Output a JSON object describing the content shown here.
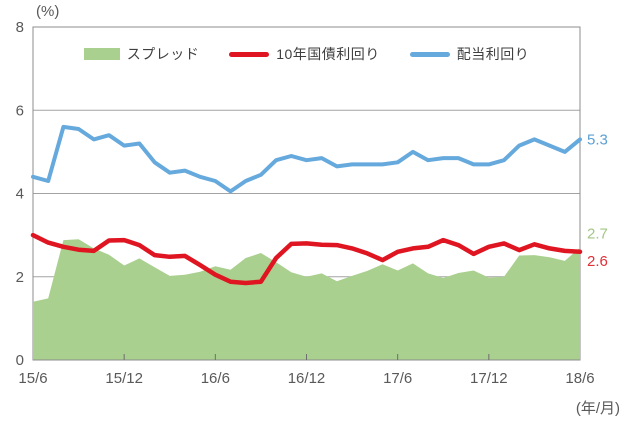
{
  "chart": {
    "unit_label": "(%)",
    "x_unit_label": "(年/月)",
    "legend": [
      {
        "label": "スプレッド",
        "type": "area",
        "color": "#a9d08e"
      },
      {
        "label": "10年国債利回り",
        "type": "line",
        "color": "#df1522"
      },
      {
        "label": "配当利回り",
        "type": "line",
        "color": "#66a9dd"
      }
    ]
  },
  "chart_data": {
    "type": "combo",
    "title": "",
    "xlabel": "(年/月)",
    "ylabel": "(%)",
    "ylim": [
      0,
      8
    ],
    "yticks": [
      0,
      2,
      4,
      6,
      8
    ],
    "grid": true,
    "legend_position": "top-inside",
    "x": [
      "15/6",
      "15/7",
      "15/8",
      "15/9",
      "15/10",
      "15/11",
      "15/12",
      "16/1",
      "16/2",
      "16/3",
      "16/4",
      "16/5",
      "16/6",
      "16/7",
      "16/8",
      "16/9",
      "16/10",
      "16/11",
      "16/12",
      "17/1",
      "17/2",
      "17/3",
      "17/4",
      "17/5",
      "17/6",
      "17/7",
      "17/8",
      "17/9",
      "17/10",
      "17/11",
      "17/12",
      "18/1",
      "18/2",
      "18/3",
      "18/4",
      "18/5",
      "18/6"
    ],
    "x_tick_labels": [
      "15/6",
      "15/12",
      "16/6",
      "16/12",
      "17/6",
      "17/12",
      "18/6"
    ],
    "x_tick_indices": [
      0,
      6,
      12,
      18,
      24,
      30,
      36
    ],
    "series": [
      {
        "name": "スプレッド",
        "type": "area",
        "color": "#a9d08e",
        "values": [
          1.4,
          1.48,
          2.88,
          2.9,
          2.68,
          2.53,
          2.27,
          2.44,
          2.23,
          2.02,
          2.05,
          2.12,
          2.25,
          2.17,
          2.45,
          2.57,
          2.35,
          2.11,
          2.0,
          2.08,
          1.89,
          2.02,
          2.14,
          2.3,
          2.15,
          2.32,
          2.08,
          1.97,
          2.09,
          2.15,
          1.98,
          2.0,
          2.51,
          2.52,
          2.47,
          2.38,
          2.7
        ]
      },
      {
        "name": "10年国債利回り",
        "type": "line",
        "color": "#df1522",
        "values": [
          3.0,
          2.82,
          2.72,
          2.65,
          2.62,
          2.87,
          2.88,
          2.76,
          2.52,
          2.48,
          2.5,
          2.28,
          2.05,
          1.88,
          1.85,
          1.88,
          2.45,
          2.79,
          2.8,
          2.77,
          2.76,
          2.68,
          2.56,
          2.4,
          2.6,
          2.68,
          2.72,
          2.88,
          2.76,
          2.55,
          2.72,
          2.8,
          2.64,
          2.78,
          2.68,
          2.62,
          2.6
        ]
      },
      {
        "name": "配当利回り",
        "type": "line",
        "color": "#66a9dd",
        "values": [
          4.4,
          4.3,
          5.6,
          5.55,
          5.3,
          5.4,
          5.15,
          5.2,
          4.75,
          4.5,
          4.55,
          4.4,
          4.3,
          4.05,
          4.3,
          4.45,
          4.8,
          4.9,
          4.8,
          4.85,
          4.65,
          4.7,
          4.7,
          4.7,
          4.75,
          5.0,
          4.8,
          4.85,
          4.85,
          4.7,
          4.7,
          4.8,
          5.15,
          5.3,
          5.15,
          5.0,
          5.3
        ]
      }
    ],
    "end_labels": [
      {
        "text": "5.3",
        "series": "配当利回り",
        "color": "#5b9fd4"
      },
      {
        "text": "2.7",
        "series": "スプレッド",
        "color": "#a3c685"
      },
      {
        "text": "2.6",
        "series": "10年国債利回り",
        "color": "#e03038"
      }
    ]
  }
}
